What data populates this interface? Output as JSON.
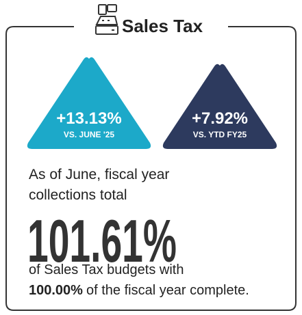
{
  "header": {
    "title": "Sales Tax"
  },
  "badges": [
    {
      "value": "+13.13%",
      "label": "VS. JUNE '25"
    },
    {
      "value": "+7.92%",
      "label": "VS. YTD FY25"
    }
  ],
  "body": {
    "intro": [
      "As of June, fiscal year",
      "collections total"
    ],
    "headline": "101.61%",
    "line1": "of Sales Tax budgets with",
    "line2_bold": "100.00%",
    "line2_rest": "of the fiscal year complete."
  }
}
